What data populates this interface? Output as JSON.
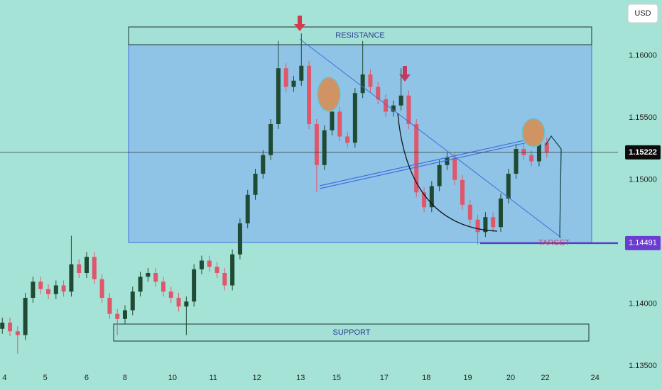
{
  "chart_data": {
    "type": "candlestick",
    "currency": "USD",
    "annotations": {
      "resistance": "RESISTANCE",
      "support": "SUPPORT",
      "target": "TARGET"
    },
    "current_price": 1.15222,
    "target_price": 1.14491,
    "up_color": "#1f4a33",
    "down_color": "#e0566a",
    "open": [
      1.138,
      1.1385,
      1.1378,
      1.1375,
      1.1405,
      1.1418,
      1.1412,
      1.1408,
      1.1415,
      1.141,
      1.1432,
      1.1425,
      1.1438,
      1.142,
      1.1405,
      1.1392,
      1.1388,
      1.1395,
      1.141,
      1.1422,
      1.1425,
      1.1418,
      1.141,
      1.1405,
      1.1398,
      1.1402,
      1.1428,
      1.1435,
      1.143,
      1.1425,
      1.1415,
      1.144,
      1.1465,
      1.1488,
      1.1505,
      1.152,
      1.1545,
      1.159,
      1.1575,
      1.158,
      1.1592,
      1.1545,
      1.1512,
      1.154,
      1.1555,
      1.1535,
      1.153,
      1.157,
      1.1585,
      1.1575,
      1.1565,
      1.1555,
      1.156,
      1.1568,
      1.1545,
      1.149,
      1.1478,
      1.1495,
      1.1512,
      1.1518,
      1.15,
      1.148,
      1.1468,
      1.1458,
      1.147,
      1.1462,
      1.1485,
      1.1505,
      1.1525,
      1.152,
      1.1515,
      1.153
    ],
    "high": [
      1.1389,
      1.1389,
      1.1382,
      1.1409,
      1.1422,
      1.1422,
      1.1416,
      1.1419,
      1.1419,
      1.1455,
      1.1436,
      1.1442,
      1.1442,
      1.1424,
      1.1409,
      1.1396,
      1.1399,
      1.1414,
      1.1426,
      1.1429,
      1.1429,
      1.1422,
      1.1414,
      1.1409,
      1.1406,
      1.1432,
      1.1439,
      1.1439,
      1.1434,
      1.1429,
      1.1444,
      1.1469,
      1.1492,
      1.1509,
      1.1524,
      1.1549,
      1.1612,
      1.1594,
      1.1584,
      1.1618,
      1.1596,
      1.1549,
      1.1544,
      1.1559,
      1.1559,
      1.1539,
      1.1574,
      1.1612,
      1.1589,
      1.1579,
      1.1569,
      1.1564,
      1.159,
      1.1572,
      1.1549,
      1.1494,
      1.1499,
      1.1516,
      1.1522,
      1.1522,
      1.1504,
      1.1484,
      1.1472,
      1.1474,
      1.1474,
      1.1489,
      1.1509,
      1.1529,
      1.1529,
      1.1524,
      1.1542,
      1.1534
    ],
    "low": [
      1.1376,
      1.1374,
      1.136,
      1.1371,
      1.1401,
      1.1408,
      1.1404,
      1.1404,
      1.1406,
      1.1406,
      1.1421,
      1.1421,
      1.1416,
      1.1401,
      1.1388,
      1.1375,
      1.1384,
      1.1391,
      1.1406,
      1.1418,
      1.1414,
      1.1406,
      1.1401,
      1.1394,
      1.1375,
      1.1398,
      1.1424,
      1.1426,
      1.1421,
      1.1411,
      1.1411,
      1.1436,
      1.1461,
      1.1484,
      1.1501,
      1.1516,
      1.1541,
      1.1571,
      1.1571,
      1.1576,
      1.1541,
      1.149,
      1.1508,
      1.1536,
      1.1531,
      1.1526,
      1.1526,
      1.1566,
      1.1571,
      1.1561,
      1.1551,
      1.1551,
      1.1556,
      1.1541,
      1.1486,
      1.1474,
      1.1474,
      1.1491,
      1.1508,
      1.1496,
      1.1476,
      1.1464,
      1.1448,
      1.1454,
      1.1458,
      1.1458,
      1.1481,
      1.1501,
      1.1516,
      1.1511,
      1.1511,
      1.1518
    ],
    "close": [
      1.1385,
      1.1378,
      1.1375,
      1.1405,
      1.1418,
      1.1412,
      1.1408,
      1.1415,
      1.141,
      1.1432,
      1.1425,
      1.1438,
      1.142,
      1.1405,
      1.1392,
      1.1388,
      1.1395,
      1.141,
      1.1422,
      1.1425,
      1.1418,
      1.141,
      1.1405,
      1.1398,
      1.1402,
      1.1428,
      1.1435,
      1.143,
      1.1425,
      1.1415,
      1.144,
      1.1465,
      1.1488,
      1.1505,
      1.152,
      1.1545,
      1.159,
      1.1575,
      1.158,
      1.1592,
      1.1545,
      1.1512,
      1.154,
      1.1555,
      1.1535,
      1.153,
      1.157,
      1.1585,
      1.1575,
      1.1565,
      1.1555,
      1.156,
      1.1568,
      1.1545,
      1.149,
      1.1478,
      1.1495,
      1.1512,
      1.1518,
      1.15,
      1.148,
      1.1468,
      1.1458,
      1.147,
      1.1462,
      1.1485,
      1.1505,
      1.1525,
      1.152,
      1.1515,
      1.153,
      1.1522
    ],
    "xlim": [
      -0.3,
      80.1
    ],
    "xticks": [
      {
        "value": 0.3,
        "label": "4"
      },
      {
        "value": 5.6,
        "label": "5"
      },
      {
        "value": 11,
        "label": "6"
      },
      {
        "value": 16,
        "label": "8"
      },
      {
        "value": 22.2,
        "label": "10"
      },
      {
        "value": 27.5,
        "label": "11"
      },
      {
        "value": 33.2,
        "label": "12"
      },
      {
        "value": 38.9,
        "label": "13"
      },
      {
        "value": 43.6,
        "label": "15"
      },
      {
        "value": 49.8,
        "label": "17"
      },
      {
        "value": 55.3,
        "label": "18"
      },
      {
        "value": 60.7,
        "label": "19"
      },
      {
        "value": 66.3,
        "label": "20"
      },
      {
        "value": 70.8,
        "label": "22"
      },
      {
        "value": 77.3,
        "label": "24"
      }
    ],
    "ylim": [
      1.1345,
      1.1645
    ],
    "yticks": [
      {
        "value": 1.135,
        "label": "1.13500"
      },
      {
        "value": 1.14,
        "label": "1.14000"
      },
      {
        "value": 1.145,
        "label": "1.14500"
      },
      {
        "value": 1.15,
        "label": "1.15000"
      },
      {
        "value": 1.155,
        "label": "1.15500"
      },
      {
        "value": 1.16,
        "label": "1.16000"
      }
    ]
  }
}
